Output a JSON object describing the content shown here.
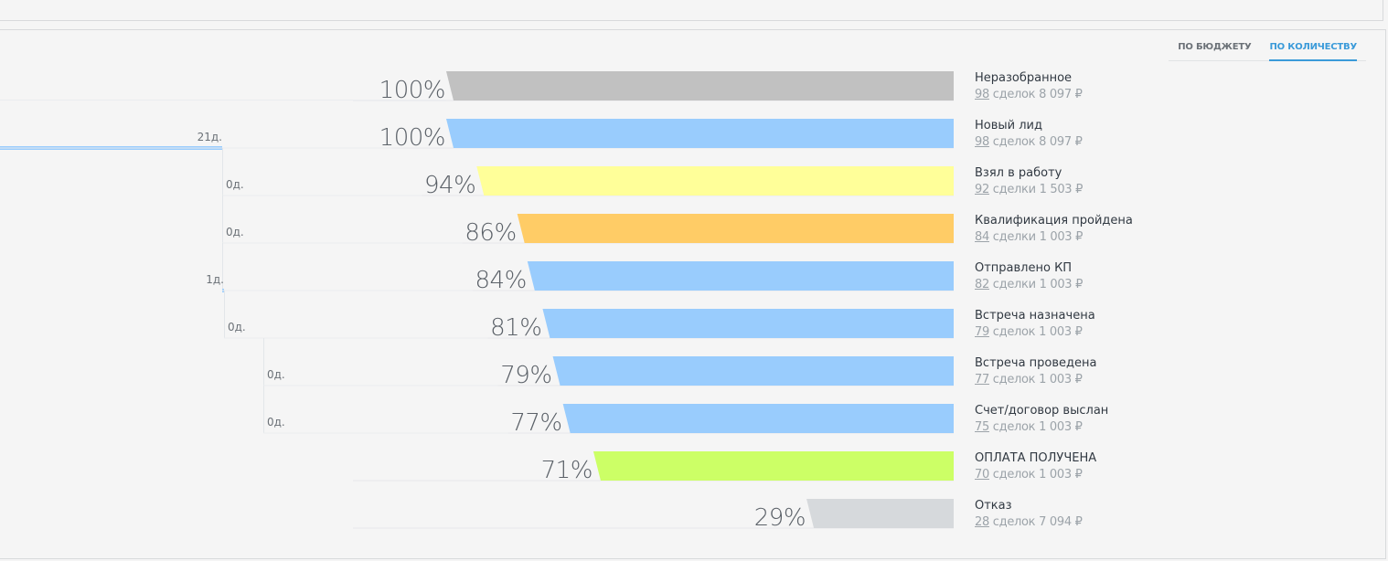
{
  "tabs": [
    {
      "label": "ПО БЮДЖЕТУ",
      "active": false
    },
    {
      "label": "ПО КОЛИЧЕСТВУ",
      "active": true
    }
  ],
  "chart_data": {
    "type": "bar",
    "title": "",
    "xlabel": "",
    "ylabel": "",
    "xlim": [
      0,
      100
    ],
    "grid": false,
    "categories": [
      "Неразобранное",
      "Новый лид",
      "Взял в работу",
      "Квалификация пройдена",
      "Отправлено КП",
      "Встреча назначена",
      "Встреча проведена",
      "Счет/договор выслан",
      "ОПЛАТА ПОЛУЧЕНА",
      "Отказ"
    ],
    "series": [
      {
        "values": [
          100,
          100,
          94,
          86,
          84,
          81,
          79,
          77,
          71,
          29
        ]
      }
    ],
    "percent_labels": [
      "100%",
      "100%",
      "94%",
      "86%",
      "84%",
      "81%",
      "79%",
      "77%",
      "71%",
      "29%"
    ],
    "colors": [
      "#c1c1c1",
      "#99ccfd",
      "#ffff99",
      "#ffcc66",
      "#99ccfd",
      "#99ccfd",
      "#99ccfd",
      "#99ccfd",
      "#ccff66",
      "#d6d9dc"
    ],
    "counts": [
      "98",
      "98",
      "92",
      "84",
      "82",
      "79",
      "77",
      "75",
      "70",
      "28"
    ],
    "deal_words": [
      "сделок",
      "сделок",
      "сделки",
      "сделки",
      "сделки",
      "сделок",
      "сделок",
      "сделок",
      "сделок",
      "сделок"
    ],
    "amounts": [
      "8 097 ₽",
      "8 097 ₽",
      "1 503 ₽",
      "1 003 ₽",
      "1 003 ₽",
      "1 003 ₽",
      "1 003 ₽",
      "1 003 ₽",
      "1 003 ₽",
      "7 094 ₽"
    ],
    "durations": [
      {
        "stage": "Новый лид",
        "label": "21д.",
        "days": 21
      },
      {
        "stage": "Взял в работу",
        "label": "0д.",
        "days": 0
      },
      {
        "stage": "Квалификация пройдена",
        "label": "0д.",
        "days": 0
      },
      {
        "stage": "Отправлено КП",
        "label": "1д.",
        "days": 1
      },
      {
        "stage": "Встреча назначена",
        "label": "0д.",
        "days": 0
      },
      {
        "stage": "Встреча проведена",
        "label": "0д.",
        "days": 0
      },
      {
        "stage": "Счет/договор выслан",
        "label": "0д.",
        "days": 0
      }
    ]
  }
}
